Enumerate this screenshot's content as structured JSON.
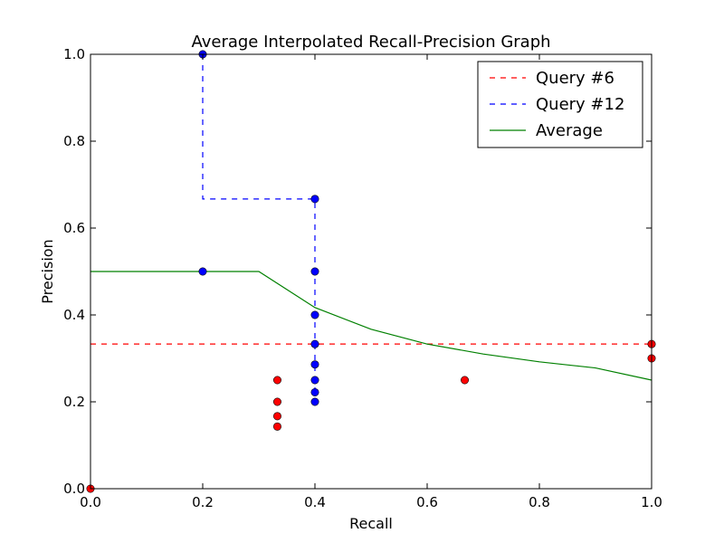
{
  "chart_data": {
    "type": "line",
    "title": "Average Interpolated Recall-Precision Graph",
    "xlabel": "Recall",
    "ylabel": "Precision",
    "xlim": [
      0.0,
      1.0
    ],
    "ylim": [
      0.0,
      1.0
    ],
    "xticks": [
      "0.0",
      "0.2",
      "0.4",
      "0.6",
      "0.8",
      "1.0"
    ],
    "yticks": [
      "0.0",
      "0.2",
      "0.4",
      "0.6",
      "0.8",
      "1.0"
    ],
    "grid": false,
    "legend_position": "top-right",
    "series": [
      {
        "name": "Query #6",
        "style": "dashed",
        "color": "#ff0000",
        "line": {
          "x": [
            0.0,
            1.0
          ],
          "y": [
            0.333,
            0.333
          ]
        },
        "points": {
          "x": [
            0.0,
            0.333,
            0.333,
            0.333,
            0.333,
            0.667,
            1.0,
            1.0
          ],
          "y": [
            0.0,
            0.25,
            0.2,
            0.167,
            0.143,
            0.25,
            0.333,
            0.3
          ]
        }
      },
      {
        "name": "Query #12",
        "style": "dashed",
        "color": "#0000ff",
        "line": {
          "x": [
            0.2,
            0.2,
            0.4,
            0.4
          ],
          "y": [
            1.0,
            0.667,
            0.667,
            0.2
          ]
        },
        "points": {
          "x": [
            0.2,
            0.2,
            0.4,
            0.4,
            0.4,
            0.4,
            0.4,
            0.4,
            0.4,
            0.4
          ],
          "y": [
            1.0,
            0.5,
            0.667,
            0.5,
            0.4,
            0.333,
            0.286,
            0.25,
            0.222,
            0.2
          ]
        }
      },
      {
        "name": "Average",
        "style": "solid",
        "color": "#008000",
        "line": {
          "x": [
            0.0,
            0.1,
            0.2,
            0.3,
            0.4,
            0.5,
            0.6,
            0.7,
            0.8,
            0.9,
            1.0
          ],
          "y": [
            0.5,
            0.5,
            0.5,
            0.5,
            0.417,
            0.367,
            0.333,
            0.31,
            0.292,
            0.278,
            0.25
          ]
        }
      }
    ]
  }
}
